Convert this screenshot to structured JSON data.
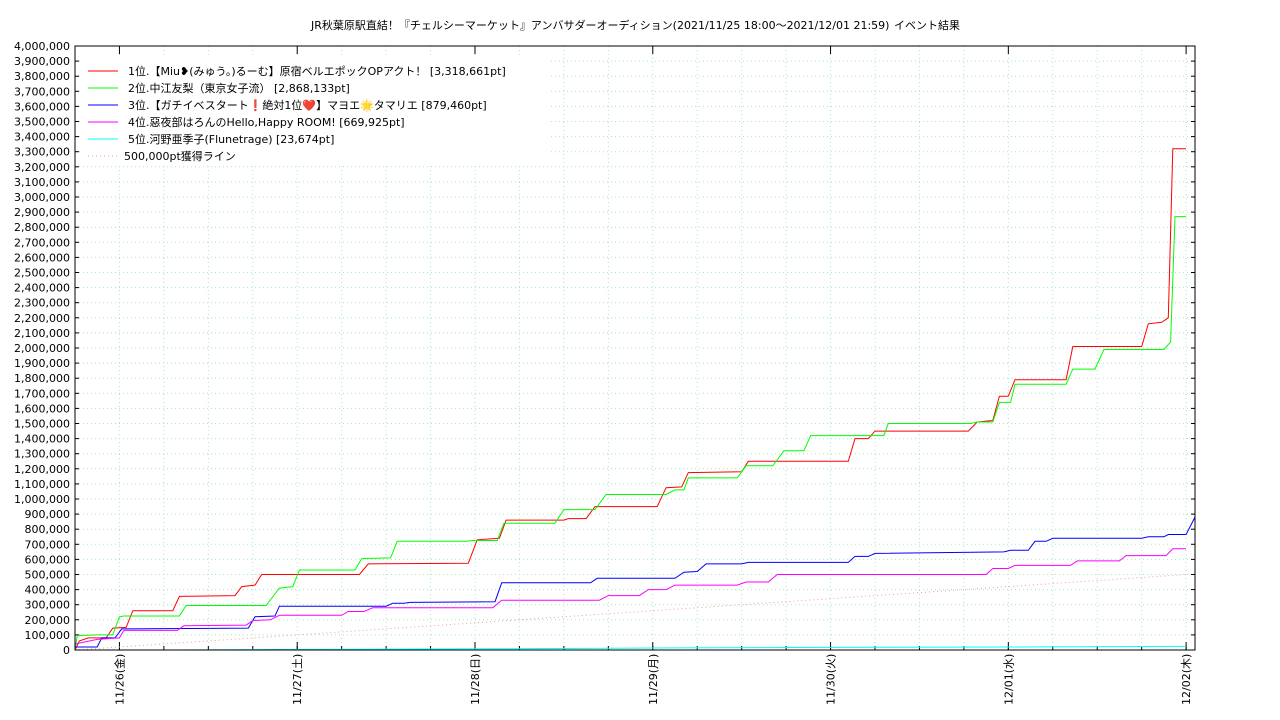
{
  "chart_data": {
    "type": "line",
    "title": "JR秋葉原駅直結！『チェルシーマーケット』アンバサダーオーディション(2021/11/25 18:00〜2021/12/01 21:59)",
    "subtitle": "イベント結果",
    "ylim": [
      0,
      4000000
    ],
    "xlim": [
      "11/25 18:00",
      "12/02 00:00"
    ],
    "yticks": [
      "0",
      "100,000",
      "200,000",
      "300,000",
      "400,000",
      "500,000",
      "600,000",
      "700,000",
      "800,000",
      "900,000",
      "1,000,000",
      "1,100,000",
      "1,200,000",
      "1,300,000",
      "1,400,000",
      "1,500,000",
      "1,600,000",
      "1,700,000",
      "1,800,000",
      "1,900,000",
      "2,000,000",
      "2,100,000",
      "2,200,000",
      "2,300,000",
      "2,400,000",
      "2,500,000",
      "2,600,000",
      "2,700,000",
      "2,800,000",
      "2,900,000",
      "3,000,000",
      "3,100,000",
      "3,200,000",
      "3,300,000",
      "3,400,000",
      "3,500,000",
      "3,600,000",
      "3,700,000",
      "3,800,000",
      "3,900,000",
      "4,000,000"
    ],
    "xticks": [
      "11/26(金)",
      "11/27(土)",
      "11/28(日)",
      "11/29(月)",
      "11/30(火)",
      "12/01(水)",
      "12/02(木)"
    ],
    "grid": true,
    "legend_position": "top-left",
    "series": [
      {
        "name": "1位.【Miu❥(みゅう。)るーむ】原宿ベルエポックOPアクト！ [3,318,661pt]",
        "color": "#ff0000",
        "points": [
          [
            0,
            0
          ],
          [
            0.1,
            60000
          ],
          [
            0.3,
            80000
          ],
          [
            0.7,
            80000
          ],
          [
            0.85,
            145000
          ],
          [
            1.15,
            150000
          ],
          [
            1.3,
            260000
          ],
          [
            2.2,
            260000
          ],
          [
            2.35,
            355000
          ],
          [
            3.6,
            360000
          ],
          [
            3.75,
            420000
          ],
          [
            4.05,
            430000
          ],
          [
            4.2,
            500000
          ],
          [
            6.4,
            500000
          ],
          [
            6.6,
            570000
          ],
          [
            8.85,
            575000
          ],
          [
            9.05,
            730000
          ],
          [
            9.55,
            740000
          ],
          [
            9.7,
            860000
          ],
          [
            11.0,
            860000
          ],
          [
            11.1,
            870000
          ],
          [
            11.5,
            870000
          ],
          [
            11.7,
            950000
          ],
          [
            13.1,
            950000
          ],
          [
            13.3,
            1075000
          ],
          [
            13.65,
            1080000
          ],
          [
            13.8,
            1175000
          ],
          [
            15.0,
            1180000
          ],
          [
            15.15,
            1250000
          ],
          [
            17.4,
            1250000
          ],
          [
            17.55,
            1400000
          ],
          [
            17.85,
            1400000
          ],
          [
            18.0,
            1450000
          ],
          [
            20.1,
            1450000
          ],
          [
            20.3,
            1510000
          ],
          [
            20.65,
            1520000
          ],
          [
            20.8,
            1680000
          ],
          [
            21.0,
            1680000
          ],
          [
            21.15,
            1790000
          ],
          [
            22.3,
            1790000
          ],
          [
            22.45,
            2010000
          ],
          [
            24.0,
            2010000
          ],
          [
            24.15,
            2160000
          ],
          [
            24.45,
            2170000
          ],
          [
            24.6,
            2200000
          ],
          [
            24.7,
            3320000
          ],
          [
            25.0,
            3320000
          ]
        ]
      },
      {
        "name": "2位.中江友梨（東京女子流） [2,868,133pt]",
        "color": "#00ff00",
        "points": [
          [
            0,
            0
          ],
          [
            0.05,
            95000
          ],
          [
            0.5,
            100000
          ],
          [
            0.85,
            100000
          ],
          [
            1.0,
            220000
          ],
          [
            1.1,
            225000
          ],
          [
            2.35,
            225000
          ],
          [
            2.5,
            295000
          ],
          [
            4.3,
            295000
          ],
          [
            4.6,
            410000
          ],
          [
            4.9,
            420000
          ],
          [
            5.05,
            530000
          ],
          [
            6.3,
            530000
          ],
          [
            6.45,
            605000
          ],
          [
            7.1,
            610000
          ],
          [
            7.25,
            720000
          ],
          [
            8.8,
            720000
          ],
          [
            8.95,
            725000
          ],
          [
            9.5,
            725000
          ],
          [
            9.65,
            840000
          ],
          [
            10.8,
            840000
          ],
          [
            11.0,
            930000
          ],
          [
            11.7,
            930000
          ],
          [
            11.95,
            1030000
          ],
          [
            13.3,
            1030000
          ],
          [
            13.5,
            1060000
          ],
          [
            13.7,
            1060000
          ],
          [
            13.8,
            1140000
          ],
          [
            14.9,
            1140000
          ],
          [
            15.1,
            1220000
          ],
          [
            15.7,
            1220000
          ],
          [
            15.95,
            1320000
          ],
          [
            16.4,
            1320000
          ],
          [
            16.55,
            1420000
          ],
          [
            18.2,
            1420000
          ],
          [
            18.3,
            1500000
          ],
          [
            20.15,
            1500000
          ],
          [
            20.3,
            1510000
          ],
          [
            20.65,
            1510000
          ],
          [
            20.8,
            1640000
          ],
          [
            21.05,
            1640000
          ],
          [
            21.15,
            1760000
          ],
          [
            22.3,
            1760000
          ],
          [
            22.45,
            1860000
          ],
          [
            22.95,
            1860000
          ],
          [
            23.15,
            1990000
          ],
          [
            24.5,
            1990000
          ],
          [
            24.65,
            2040000
          ],
          [
            24.75,
            2870000
          ],
          [
            25.0,
            2870000
          ]
        ]
      },
      {
        "name": "3位.【ガチイベスタート❗️絶対1位❤️】マヨエ🌟タマリエ [879,460pt]",
        "color": "#0000ff",
        "points": [
          [
            0,
            20000
          ],
          [
            0.5,
            20000
          ],
          [
            0.6,
            80000
          ],
          [
            0.9,
            80000
          ],
          [
            1.05,
            140000
          ],
          [
            3.9,
            145000
          ],
          [
            4.05,
            220000
          ],
          [
            4.5,
            225000
          ],
          [
            4.6,
            290000
          ],
          [
            7.0,
            290000
          ],
          [
            7.15,
            310000
          ],
          [
            7.4,
            310000
          ],
          [
            7.55,
            315000
          ],
          [
            9.45,
            320000
          ],
          [
            9.6,
            445000
          ],
          [
            11.6,
            445000
          ],
          [
            11.75,
            475000
          ],
          [
            13.5,
            475000
          ],
          [
            13.7,
            515000
          ],
          [
            14.0,
            520000
          ],
          [
            14.2,
            570000
          ],
          [
            15.0,
            570000
          ],
          [
            15.15,
            580000
          ],
          [
            17.4,
            580000
          ],
          [
            17.55,
            620000
          ],
          [
            17.85,
            620000
          ],
          [
            18.0,
            640000
          ],
          [
            20.9,
            650000
          ],
          [
            21.05,
            660000
          ],
          [
            21.45,
            660000
          ],
          [
            21.6,
            720000
          ],
          [
            21.85,
            720000
          ],
          [
            22.0,
            740000
          ],
          [
            24.0,
            740000
          ],
          [
            24.15,
            750000
          ],
          [
            24.5,
            750000
          ],
          [
            24.6,
            765000
          ],
          [
            25.0,
            765000
          ],
          [
            25.2,
            880000
          ]
        ]
      },
      {
        "name": "4位.惡夜部はろんのHello,Happy ROOM! [669,925pt]",
        "color": "#ff00ff",
        "points": [
          [
            0,
            40000
          ],
          [
            0.5,
            70000
          ],
          [
            1.0,
            80000
          ],
          [
            1.1,
            130000
          ],
          [
            2.3,
            130000
          ],
          [
            2.45,
            160000
          ],
          [
            3.85,
            165000
          ],
          [
            4.0,
            195000
          ],
          [
            4.4,
            200000
          ],
          [
            4.6,
            230000
          ],
          [
            6.0,
            230000
          ],
          [
            6.15,
            255000
          ],
          [
            6.5,
            255000
          ],
          [
            6.7,
            280000
          ],
          [
            9.4,
            280000
          ],
          [
            9.6,
            330000
          ],
          [
            11.8,
            330000
          ],
          [
            12.0,
            360000
          ],
          [
            12.7,
            360000
          ],
          [
            12.9,
            400000
          ],
          [
            13.3,
            400000
          ],
          [
            13.5,
            430000
          ],
          [
            14.9,
            430000
          ],
          [
            15.1,
            450000
          ],
          [
            15.6,
            450000
          ],
          [
            15.8,
            500000
          ],
          [
            20.5,
            500000
          ],
          [
            20.65,
            540000
          ],
          [
            21.0,
            540000
          ],
          [
            21.15,
            560000
          ],
          [
            22.4,
            560000
          ],
          [
            22.55,
            590000
          ],
          [
            23.5,
            590000
          ],
          [
            23.65,
            625000
          ],
          [
            24.55,
            625000
          ],
          [
            24.7,
            670000
          ],
          [
            25.0,
            670000
          ]
        ]
      },
      {
        "name": "5位.河野亜季子(Flunetrage) [23,674pt]",
        "color": "#00ffff",
        "points": [
          [
            2.3,
            0
          ],
          [
            4.5,
            3000
          ],
          [
            9.5,
            8000
          ],
          [
            13.5,
            14000
          ],
          [
            17.0,
            17000
          ],
          [
            21.0,
            20000
          ],
          [
            25.0,
            24000
          ]
        ]
      },
      {
        "name": "500,000pt獲得ライン",
        "color": "#e8a090",
        "dotted": true,
        "points": [
          [
            0,
            0
          ],
          [
            25.0,
            500000
          ]
        ]
      }
    ]
  }
}
